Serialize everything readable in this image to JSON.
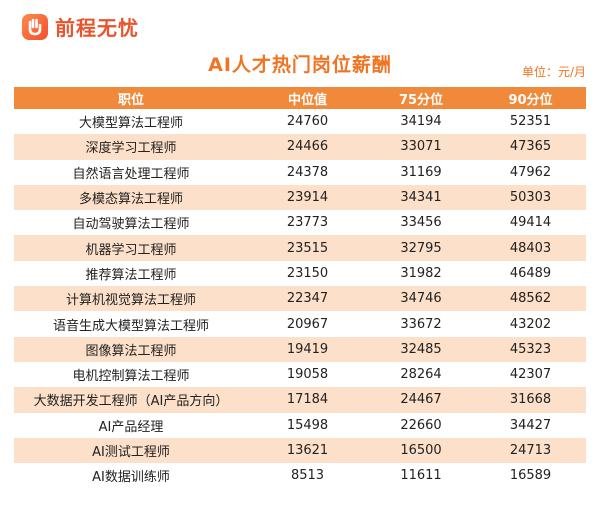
{
  "brand": {
    "name": "前程无忧",
    "logo_icon": "hand-logo-icon"
  },
  "chart_data": {
    "type": "table",
    "title": "AI人才热门岗位薪酬",
    "unit": "单位：元/月",
    "columns": [
      "职位",
      "中位值",
      "75分位",
      "90分位"
    ],
    "rows": [
      [
        "大模型算法工程师",
        24760,
        34194,
        52351
      ],
      [
        "深度学习工程师",
        24466,
        33071,
        47365
      ],
      [
        "自然语言处理工程师",
        24378,
        31169,
        47962
      ],
      [
        "多模态算法工程师",
        23914,
        34341,
        50303
      ],
      [
        "自动驾驶算法工程师",
        23773,
        33456,
        49414
      ],
      [
        "机器学习工程师",
        23515,
        32795,
        48403
      ],
      [
        "推荐算法工程师",
        23150,
        31982,
        46489
      ],
      [
        "计算机视觉算法工程师",
        22347,
        34746,
        48562
      ],
      [
        "语音生成大模型算法工程师",
        20967,
        33672,
        43202
      ],
      [
        "图像算法工程师",
        19419,
        32485,
        45323
      ],
      [
        "电机控制算法工程师",
        19058,
        28264,
        42307
      ],
      [
        "大数据开发工程师（AI产品方向）",
        17184,
        24467,
        31668
      ],
      [
        "AI产品经理",
        15498,
        22660,
        34427
      ],
      [
        "AI测试工程师",
        13621,
        16500,
        24713
      ],
      [
        "AI数据训练师",
        8513,
        11611,
        16589
      ]
    ],
    "colors": {
      "header": "#f08a3a",
      "stripe": "#fde0c9",
      "title": "#f07424",
      "brand": "#e8542c"
    }
  }
}
